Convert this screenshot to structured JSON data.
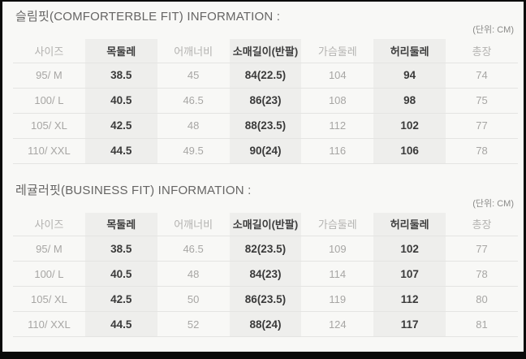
{
  "tables": [
    {
      "id": "slim-fit",
      "title": "슬림핏(COMFORTERBLE FIT) INFORMATION :",
      "unit": "(단위: CM)",
      "columns": [
        "사이즈",
        "목둘레",
        "어깨너비",
        "소매길이(반팔)",
        "가슴둘레",
        "허리둘레",
        "총장"
      ],
      "highlight_columns": [
        1,
        3,
        5
      ],
      "rows": [
        [
          "95/ M",
          "38.5",
          "45",
          "84(22.5)",
          "104",
          "94",
          "74"
        ],
        [
          "100/ L",
          "40.5",
          "46.5",
          "86(23)",
          "108",
          "98",
          "75"
        ],
        [
          "105/ XL",
          "42.5",
          "48",
          "88(23.5)",
          "112",
          "102",
          "77"
        ],
        [
          "110/ XXL",
          "44.5",
          "49.5",
          "90(24)",
          "116",
          "106",
          "78"
        ]
      ]
    },
    {
      "id": "regular-fit",
      "title": "레귤러핏(BUSINESS FIT) INFORMATION :",
      "unit": "(단위: CM)",
      "columns": [
        "사이즈",
        "목둘레",
        "어깨너비",
        "소매길이(반팔)",
        "가슴둘레",
        "허리둘레",
        "총장"
      ],
      "highlight_columns": [
        1,
        3,
        5
      ],
      "rows": [
        [
          "95/ M",
          "38.5",
          "46.5",
          "82(23.5)",
          "109",
          "102",
          "77"
        ],
        [
          "100/ L",
          "40.5",
          "48",
          "84(23)",
          "114",
          "107",
          "78"
        ],
        [
          "105/ XL",
          "42.5",
          "50",
          "86(23.5)",
          "119",
          "112",
          "80"
        ],
        [
          "110/ XXL",
          "44.5",
          "52",
          "88(24)",
          "124",
          "117",
          "81"
        ]
      ]
    }
  ],
  "colors": {
    "background": "#f8f8f6",
    "frame_border": "#0a0a0a",
    "highlight_band": "#eeeeec",
    "muted_text": "#a7a6a4",
    "strong_text": "#3a3a3a",
    "separator_line": "#e4e4e2"
  }
}
